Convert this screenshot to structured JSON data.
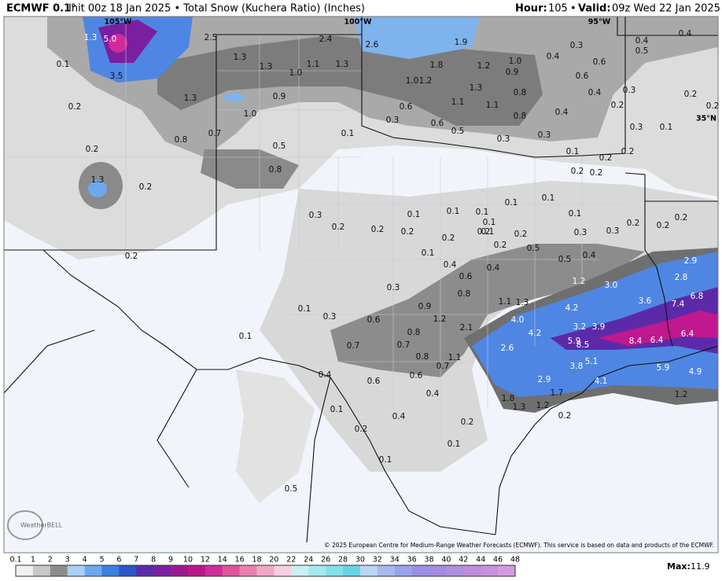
{
  "header": {
    "model": "ECMWF 0.1°",
    "description": "Init 00z 18 Jan 2025 • Total Snow (Kuchera Ratio) (Inches)",
    "hour_label": "Hour:",
    "hour": "105",
    "separator": "•",
    "valid_label": "Valid:",
    "valid": "09z Wed 22 Jan 2025"
  },
  "map": {
    "geo_labels": [
      "105°W",
      "100°W",
      "95°W",
      "35°N"
    ],
    "labels": [
      "1.3",
      "5.0",
      "2.5",
      "2.4",
      "2.6",
      "1.9",
      "0.1",
      "3.5",
      "1.3",
      "1.3",
      "1.0",
      "1.1",
      "1.3",
      "1.8",
      "1.2",
      "1.0",
      "0.9",
      "0.4",
      "0.3",
      "0.6",
      "0.4",
      "0.5",
      "0.4",
      "0.6",
      "1.3",
      "0.9",
      "1.0",
      "1.2",
      "1.3",
      "1.1",
      "1.1",
      "0.8",
      "0.4",
      "0.3",
      "0.2",
      "0.2",
      "0.2",
      "1.0",
      "0.6",
      "0.8",
      "0.4",
      "0.2",
      "0.3",
      "0.6",
      "0.5",
      "0.3",
      "0.3",
      "0.3",
      "0.1",
      "0.7",
      "0.8",
      "0.1",
      "0.5",
      "0.2",
      "0.1",
      "0.2",
      "0.2",
      "0.2",
      "0.2",
      "0.8",
      "1.3",
      "0.2",
      "0.1",
      "0.1",
      "0.1",
      "0.3",
      "0.1",
      "0.1",
      "0.1",
      "0.1",
      "0.1",
      "0.2",
      "0.2",
      "0.2",
      "0.2",
      "0.2",
      "0.2",
      "0.3",
      "0.3",
      "0.2",
      "0.2",
      "0.2",
      "0.2",
      "0.5",
      "0.2",
      "0.1",
      "0.5",
      "0.4",
      "2.9",
      "0.4",
      "0.6",
      "0.4",
      "2.8",
      "1.2",
      "3.0",
      "0.3",
      "0.8",
      "6.8",
      "1.1",
      "1.3",
      "4.2",
      "3.6",
      "7.4",
      "0.1",
      "0.9",
      "0.3",
      "0.6",
      "1.2",
      "4.0",
      "3.2",
      "3.9",
      "0.1",
      "0.8",
      "2.1",
      "4.2",
      "6.4",
      "5.9",
      "8.5",
      "8.4",
      "6.4",
      "0.7",
      "0.7",
      "2.6",
      "0.8",
      "1.1",
      "0.7",
      "3.8",
      "5.1",
      "5.9",
      "4.9",
      "0.4",
      "0.6",
      "0.6",
      "2.9",
      "4.1",
      "0.4",
      "1.8",
      "1.7",
      "1.2",
      "0.1",
      "1.3",
      "1.2",
      "0.4",
      "0.2",
      "0.2",
      "0.2",
      "0.1",
      "0.1",
      "0.5"
    ],
    "copyright": "© 2025 European Centre for Medium-Range Weather Forecasts (ECMWF). This service is based on data and products of the ECMWF.",
    "logo": "WeatherBELL"
  },
  "legend": {
    "ticks": [
      "0.1",
      "1",
      "2",
      "3",
      "4",
      "5",
      "6",
      "7",
      "8",
      "9",
      "10",
      "12",
      "14",
      "16",
      "18",
      "20",
      "22",
      "24",
      "26",
      "28",
      "30",
      "32",
      "34",
      "36",
      "38",
      "40",
      "42",
      "44",
      "46",
      "48"
    ],
    "colors": [
      "#f0f0f0",
      "#c8c8c8",
      "#8c8c8c",
      "#a8d0f5",
      "#6ea8ec",
      "#3d7fe0",
      "#2a55c8",
      "#5a2aa8",
      "#7a1fa0",
      "#9c1890",
      "#b8178a",
      "#d12a9a",
      "#e0549a",
      "#ea7fb0",
      "#f1a6c8",
      "#f7cfe0",
      "#c9f1f5",
      "#a6e8f0",
      "#84dfe9",
      "#66d3e3",
      "#b9d6f5",
      "#a8b8ef",
      "#9aa2ea",
      "#9a8fe6",
      "#a48de0",
      "#b08ede",
      "#bc8edb",
      "#c890dc",
      "#d49ae0"
    ],
    "max_label": "Max:",
    "max": "11.9"
  }
}
